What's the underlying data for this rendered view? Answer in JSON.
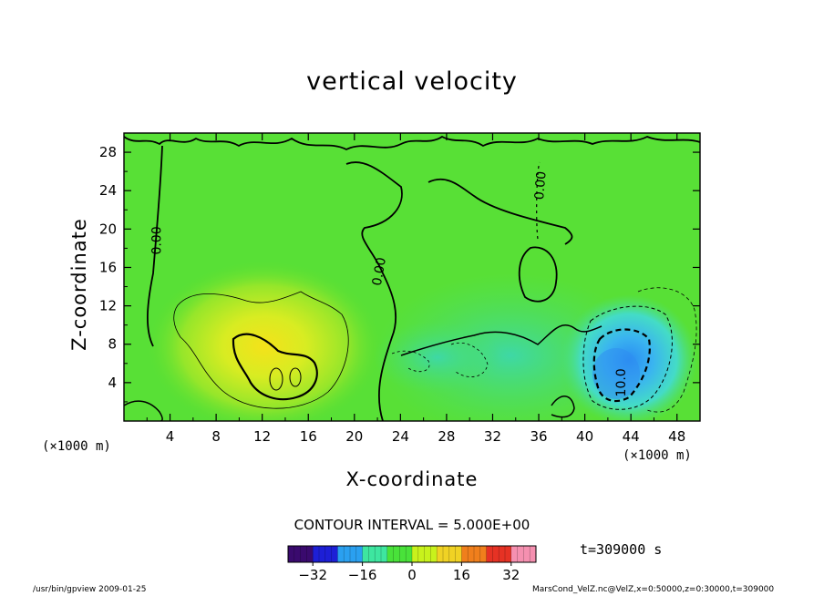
{
  "chart_data": {
    "type": "heatmap",
    "title": "vertical velocity",
    "xlabel": "X-coordinate",
    "ylabel": "Z-coordinate",
    "x_unit": "(×1000 m)",
    "xlim": [
      0,
      50
    ],
    "ylim": [
      0,
      30
    ],
    "x_ticks": [
      4,
      8,
      12,
      16,
      20,
      24,
      28,
      32,
      36,
      40,
      44,
      48
    ],
    "y_ticks": [
      4,
      8,
      12,
      16,
      20,
      24,
      28
    ],
    "contour_interval": "CONTOUR INTERVAL = 5.000E+00",
    "contour_labels": [
      "0.00",
      "0.00",
      "0.00",
      "10.0"
    ],
    "features": [
      {
        "kind": "updraft",
        "x": 13.5,
        "z": 5,
        "value": 15
      },
      {
        "kind": "downdraft",
        "x": 42.5,
        "z": 4.5,
        "value": -12
      },
      {
        "kind": "downdraft-weak",
        "x": 29,
        "z": 6.5,
        "value": -4
      }
    ],
    "colorbar": {
      "ticks": [
        -32,
        -16,
        0,
        16,
        32
      ],
      "range": [
        -40,
        40
      ],
      "colors": [
        "#3a0a6e",
        "#1d1fd6",
        "#2aa0f0",
        "#3ee6a0",
        "#49e23a",
        "#c8f21c",
        "#f0d224",
        "#f07f1c",
        "#e63224",
        "#f590b0"
      ]
    },
    "time_label": "t=309000 s"
  },
  "footer": {
    "left": "/usr/bin/gpview  2009-01-25",
    "right": "MarsCond_VelZ.nc@VelZ,x=0:50000,z=0:30000,t=309000"
  }
}
